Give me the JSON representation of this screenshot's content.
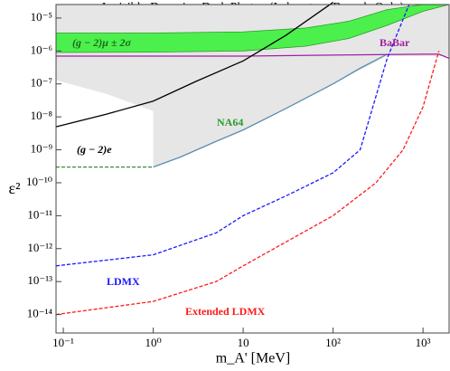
{
  "chart_data": {
    "type": "line",
    "title": "Invisibly Decaying Dark Photon  (Laboratory Bounds Only)",
    "x_label": "m_A' [MeV]",
    "y_label": "ε²",
    "log_x": true,
    "log_y": true,
    "xlim": [
      0.083,
      1950
    ],
    "ylim": [
      2.75e-15,
      2.57e-05
    ],
    "xticks": [
      {
        "value": 0.1,
        "label": "10⁻¹"
      },
      {
        "value": 1,
        "label": "10⁰"
      },
      10,
      {
        "value": 100,
        "label": "10²"
      },
      {
        "value": 1000,
        "label": "10³"
      }
    ],
    "yticks": [
      {
        "value": 1e-14,
        "label": "10⁻¹⁴"
      },
      {
        "value": 1e-13,
        "label": "10⁻¹³"
      },
      {
        "value": 1e-12,
        "label": "10⁻¹²"
      },
      {
        "value": 1e-11,
        "label": "10⁻¹¹"
      },
      {
        "value": 1e-10,
        "label": "10⁻¹⁰"
      },
      {
        "value": 1e-09,
        "label": "10⁻⁹"
      },
      {
        "value": 1e-08,
        "label": "10⁻⁸"
      },
      {
        "value": 1e-07,
        "label": "10⁻⁷"
      },
      {
        "value": 1e-06,
        "label": "10⁻⁶"
      },
      {
        "value": 1e-05,
        "label": "10⁻⁵"
      }
    ],
    "excluded_region": {
      "color": "#e6e6e6",
      "x": [
        0.083,
        0.3,
        1,
        1,
        2,
        10,
        100,
        400,
        1950,
        1950,
        0.083
      ],
      "values": [
        1.3e-07,
        5e-08,
        1.5e-08,
        3e-10,
        6e-10,
        4e-09,
        1e-07,
        7e-07,
        7e-07,
        2.57e-05,
        2.57e-05
      ]
    },
    "band": {
      "color": "#4cf04c",
      "x": [
        0.083,
        1,
        10,
        50,
        150,
        400,
        1000,
        1950
      ],
      "lower": [
        9e-07,
        9.2e-07,
        1e-06,
        1.4e-06,
        2.4e-06,
        6e-06,
        1.6e-05,
        2.57e-05
      ],
      "upper": [
        3.5e-06,
        3.5e-06,
        3.8e-06,
        5e-06,
        8e-06,
        1.8e-05,
        2.57e-05,
        2.57e-05
      ]
    },
    "series": [
      {
        "color": "#3d8a3d",
        "dashed": true,
        "x": [
          0.083,
          1
        ],
        "values": [
          3e-10,
          3e-10
        ]
      },
      {
        "color": "#5a8db0",
        "dashed": false,
        "x": [
          1,
          2,
          5,
          10,
          30,
          100,
          200,
          400
        ],
        "values": [
          3e-10,
          6e-10,
          1.8e-09,
          4e-09,
          1.8e-08,
          1e-07,
          3e-07,
          8e-07
        ]
      },
      {
        "color": "#a020a0",
        "dashed": false,
        "x": [
          0.083,
          10,
          100,
          1000,
          1500,
          1950
        ],
        "values": [
          7e-07,
          7e-07,
          7.5e-07,
          8e-07,
          8e-07,
          6e-07
        ]
      },
      {
        "color": "#000000",
        "dashed": false,
        "x": [
          0.083,
          0.3,
          1,
          3,
          10,
          30,
          100
        ],
        "values": [
          5e-09,
          1.2e-08,
          3e-08,
          1.2e-07,
          5e-07,
          3e-06,
          3e-05
        ]
      },
      {
        "color": "#1a1aff",
        "dashed": true,
        "x": [
          0.083,
          1,
          5,
          10,
          30,
          100,
          200,
          400,
          700
        ],
        "values": [
          3e-13,
          6.5e-13,
          3e-12,
          1e-11,
          4e-11,
          2e-10,
          1e-09,
          6e-07,
          2.57e-05
        ]
      },
      {
        "color": "#ff1a1a",
        "dashed": true,
        "x": [
          0.083,
          1,
          5,
          10,
          100,
          300,
          600,
          1000,
          1500
        ],
        "values": [
          1e-14,
          2.5e-14,
          1e-13,
          3e-13,
          1e-11,
          1e-10,
          1e-09,
          2e-08,
          1e-06
        ]
      }
    ],
    "annotations": [
      {
        "text": "(g − 2)μ ± 2σ",
        "color": "#1a6a1a"
      },
      {
        "text": "BaBar",
        "color": "#a020a0"
      },
      {
        "text": "NA64",
        "color": "#2a9a2a"
      },
      {
        "text": "(g − 2)e",
        "color": "#000000"
      },
      {
        "text": "LDMX",
        "color": "#1a1aff"
      },
      {
        "text": "Extended LDMX",
        "color": "#ff1a1a"
      }
    ]
  }
}
